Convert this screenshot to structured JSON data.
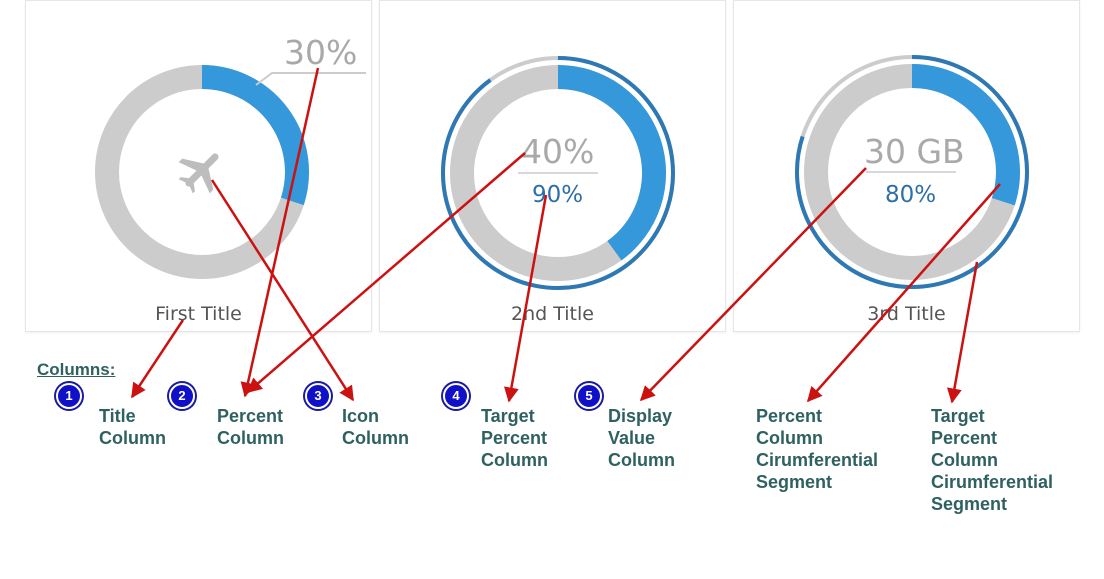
{
  "colors": {
    "track": "#cccccc",
    "percent_segment": "#3598db",
    "target_segment": "#2e78b4",
    "arrow": "#cc1111",
    "annotation_text": "#2f6160",
    "badge": "#1010c8"
  },
  "gauges": [
    {
      "title": "First Title",
      "percent": 30,
      "display_value": "30%",
      "target_label": "",
      "target_percent": null,
      "icon": "airplane-icon"
    },
    {
      "title": "2nd Title",
      "percent": 40,
      "display_value": "40%",
      "target_label": "90%",
      "target_percent": 90,
      "icon": ""
    },
    {
      "title": "3rd Title",
      "percent": 30,
      "display_value": "30 GB",
      "target_label": "80%",
      "target_percent": 80,
      "icon": ""
    }
  ],
  "legend": {
    "heading": "Columns:",
    "items": [
      {
        "number": "1",
        "label": "Title\nColumn"
      },
      {
        "number": "2",
        "label": "Percent\nColumn"
      },
      {
        "number": "3",
        "label": "Icon\nColumn"
      },
      {
        "number": "4",
        "label": "Target\nPercent\nColumn"
      },
      {
        "number": "5",
        "label": "Display\nValue\nColumn"
      },
      {
        "number": "",
        "label": "Percent\nColumn\nCirumferential\nSegment"
      },
      {
        "number": "",
        "label": "Target\nPercent\nColumn\nCirumferential\nSegment"
      }
    ]
  }
}
